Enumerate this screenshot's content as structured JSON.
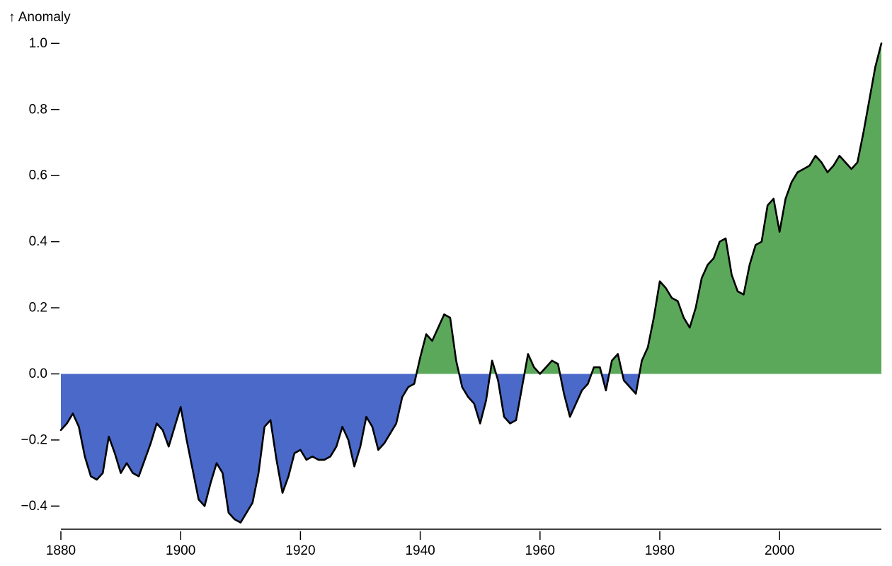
{
  "chart_data": {
    "type": "area",
    "title": "",
    "ylabel": "↑ Anomaly",
    "xlabel": "",
    "xlim": [
      1880,
      2017
    ],
    "ylim": [
      -0.47,
      1.02
    ],
    "x_ticks": [
      1880,
      1900,
      1920,
      1940,
      1960,
      1980,
      2000
    ],
    "y_ticks": [
      "−0.4",
      "−0.2",
      "0.0",
      "0.2",
      "0.4",
      "0.6",
      "0.8",
      "1.0"
    ],
    "y_tick_values": [
      -0.4,
      -0.2,
      0.0,
      0.2,
      0.4,
      0.6,
      0.8,
      1.0
    ],
    "colors": {
      "positive": "#5ba85b",
      "negative": "#4a69c8",
      "line": "#000000"
    },
    "x": [
      1880,
      1881,
      1882,
      1883,
      1884,
      1885,
      1886,
      1887,
      1888,
      1889,
      1890,
      1891,
      1892,
      1893,
      1894,
      1895,
      1896,
      1897,
      1898,
      1899,
      1900,
      1901,
      1902,
      1903,
      1904,
      1905,
      1906,
      1907,
      1908,
      1909,
      1910,
      1911,
      1912,
      1913,
      1914,
      1915,
      1916,
      1917,
      1918,
      1919,
      1920,
      1921,
      1922,
      1923,
      1924,
      1925,
      1926,
      1927,
      1928,
      1929,
      1930,
      1931,
      1932,
      1933,
      1934,
      1935,
      1936,
      1937,
      1938,
      1939,
      1940,
      1941,
      1942,
      1943,
      1944,
      1945,
      1946,
      1947,
      1948,
      1949,
      1950,
      1951,
      1952,
      1953,
      1954,
      1955,
      1956,
      1957,
      1958,
      1959,
      1960,
      1961,
      1962,
      1963,
      1964,
      1965,
      1966,
      1967,
      1968,
      1969,
      1970,
      1971,
      1972,
      1973,
      1974,
      1975,
      1976,
      1977,
      1978,
      1979,
      1980,
      1981,
      1982,
      1983,
      1984,
      1985,
      1986,
      1987,
      1988,
      1989,
      1990,
      1991,
      1992,
      1993,
      1994,
      1995,
      1996,
      1997,
      1998,
      1999,
      2000,
      2001,
      2002,
      2003,
      2004,
      2005,
      2006,
      2007,
      2008,
      2009,
      2010,
      2011,
      2012,
      2013,
      2014,
      2015,
      2016,
      2017
    ],
    "values": [
      -0.17,
      -0.15,
      -0.12,
      -0.16,
      -0.25,
      -0.31,
      -0.32,
      -0.3,
      -0.19,
      -0.24,
      -0.3,
      -0.27,
      -0.3,
      -0.31,
      -0.26,
      -0.21,
      -0.15,
      -0.17,
      -0.22,
      -0.16,
      -0.1,
      -0.2,
      -0.29,
      -0.38,
      -0.4,
      -0.33,
      -0.27,
      -0.3,
      -0.42,
      -0.44,
      -0.45,
      -0.42,
      -0.39,
      -0.3,
      -0.16,
      -0.14,
      -0.26,
      -0.36,
      -0.31,
      -0.24,
      -0.23,
      -0.26,
      -0.25,
      -0.26,
      -0.26,
      -0.25,
      -0.22,
      -0.16,
      -0.2,
      -0.28,
      -0.22,
      -0.13,
      -0.16,
      -0.23,
      -0.21,
      -0.18,
      -0.15,
      -0.07,
      -0.04,
      -0.03,
      0.05,
      0.12,
      0.1,
      0.14,
      0.18,
      0.17,
      0.04,
      -0.04,
      -0.07,
      -0.09,
      -0.15,
      -0.08,
      0.04,
      -0.02,
      -0.13,
      -0.15,
      -0.14,
      -0.04,
      0.06,
      0.02,
      0.0,
      0.02,
      0.04,
      0.03,
      -0.06,
      -0.13,
      -0.09,
      -0.05,
      -0.03,
      0.02,
      0.02,
      -0.05,
      0.04,
      0.06,
      -0.02,
      -0.04,
      -0.06,
      0.04,
      0.08,
      0.17,
      0.28,
      0.26,
      0.23,
      0.22,
      0.17,
      0.14,
      0.2,
      0.29,
      0.33,
      0.35,
      0.4,
      0.41,
      0.3,
      0.25,
      0.24,
      0.33,
      0.39,
      0.4,
      0.51,
      0.53,
      0.43,
      0.53,
      0.58,
      0.61,
      0.62,
      0.63,
      0.66,
      0.64,
      0.61,
      0.63,
      0.66,
      0.64,
      0.62,
      0.64,
      0.73,
      0.83,
      0.93,
      1.0
    ],
    "grid": false,
    "legend": "none"
  }
}
